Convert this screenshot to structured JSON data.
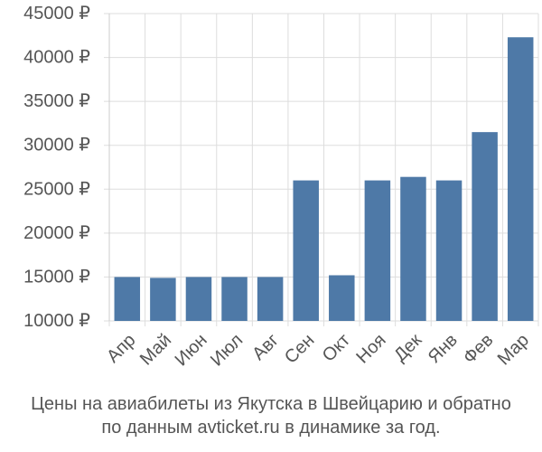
{
  "chart_data": {
    "type": "bar",
    "categories": [
      "Апр",
      "Май",
      "Июн",
      "Июл",
      "Авг",
      "Сен",
      "Окт",
      "Ноя",
      "Дек",
      "Янв",
      "Фев",
      "Мар"
    ],
    "values": [
      15000,
      14900,
      15000,
      15000,
      15000,
      26000,
      15200,
      26000,
      26400,
      26000,
      31500,
      42300
    ],
    "yticks": [
      10000,
      15000,
      20000,
      25000,
      30000,
      35000,
      40000,
      45000
    ],
    "ytick_labels": [
      "10000 ₽",
      "15000 ₽",
      "20000 ₽",
      "25000 ₽",
      "30000 ₽",
      "35000 ₽",
      "40000 ₽",
      "45000 ₽"
    ],
    "ylim": [
      10000,
      45000
    ],
    "grid": true,
    "bar_color": "#4e79a7"
  },
  "caption": {
    "line1": "Цены на авиабилеты из Якутска в Швейцарию и обратно",
    "line2": "по данным avticket.ru в динамике за год."
  }
}
